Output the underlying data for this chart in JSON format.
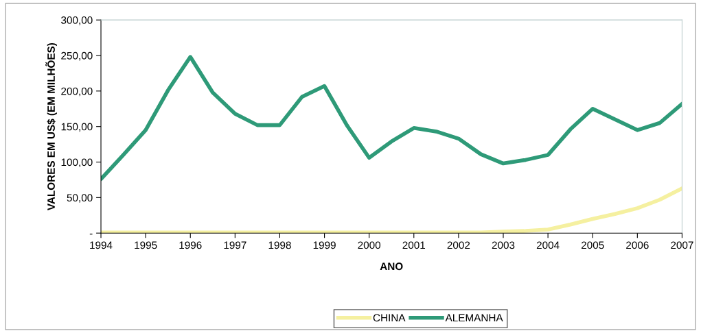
{
  "chart_data": {
    "type": "line",
    "xlabel": "ANO",
    "ylabel": "VALORES EM US$ (EM MILHÕES)",
    "x": [
      1994,
      1994.5,
      1995,
      1995.5,
      1996,
      1996.5,
      1997,
      1997.5,
      1998,
      1998.5,
      1999,
      1999.5,
      2000,
      2000.5,
      2001,
      2001.5,
      2002,
      2002.5,
      2003,
      2003.5,
      2004,
      2004.5,
      2005,
      2005.5,
      2006,
      2006.5,
      2007
    ],
    "series": [
      {
        "name": "CHINA",
        "color": "#f5f0a0",
        "values": [
          1,
          1,
          1,
          1,
          1,
          1,
          1,
          1,
          1,
          1,
          1,
          1,
          1,
          1,
          1,
          1,
          1,
          1,
          2,
          3,
          5,
          12,
          20,
          27,
          35,
          47,
          63
        ]
      },
      {
        "name": "ALEMANHA",
        "color": "#2e9a78",
        "values": [
          76,
          110,
          145,
          201,
          248,
          198,
          168,
          152,
          152,
          192,
          207,
          152,
          106,
          129,
          148,
          143,
          133,
          111,
          98,
          103,
          110,
          146,
          175,
          160,
          145,
          155,
          182
        ]
      }
    ],
    "xlim": [
      1994,
      2007
    ],
    "xticks": [
      1994,
      1995,
      1996,
      1997,
      1998,
      1999,
      2000,
      2001,
      2002,
      2003,
      2004,
      2005,
      2006,
      2007
    ],
    "ylim": [
      0,
      300
    ],
    "yticks": [
      {
        "value": 0,
        "label": "-"
      },
      {
        "value": 50,
        "label": "50,00"
      },
      {
        "value": 100,
        "label": "100,00"
      },
      {
        "value": 150,
        "label": "150,00"
      },
      {
        "value": 200,
        "label": "200,00"
      },
      {
        "value": 250,
        "label": "250,00"
      },
      {
        "value": 300,
        "label": "300,00"
      }
    ],
    "grid": false,
    "legend": "bottom",
    "marker": "none",
    "line_style": "solid"
  }
}
